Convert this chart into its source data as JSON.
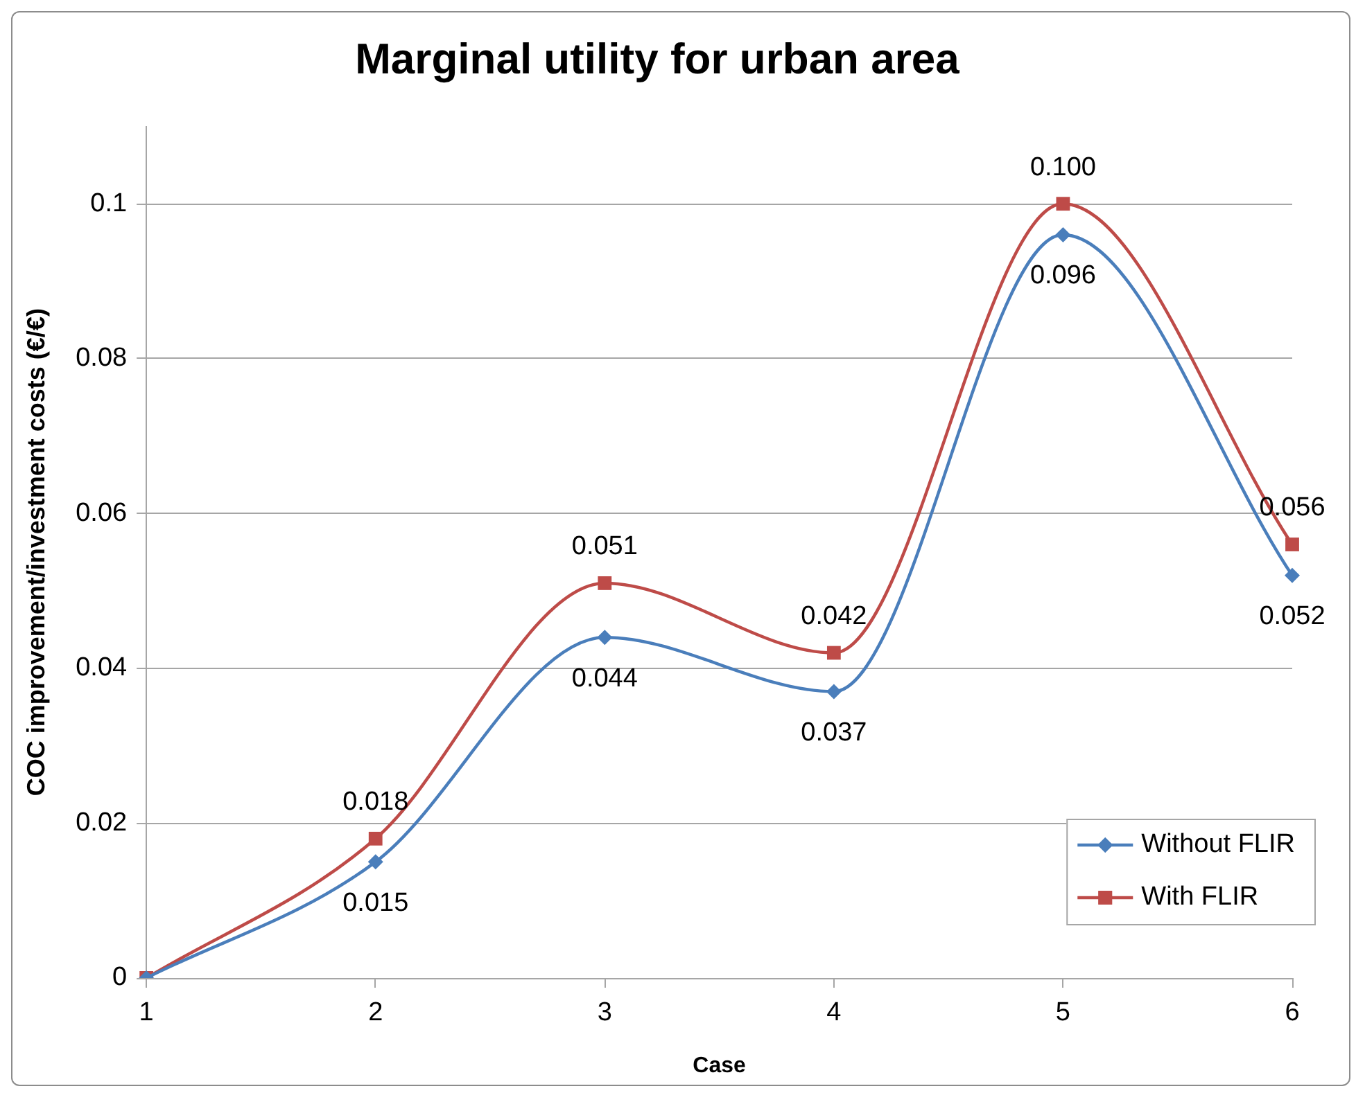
{
  "chart_data": {
    "type": "line",
    "title": "Marginal utility for urban area",
    "xlabel": "Case",
    "ylabel": "COC improvement/investment costs (€/€)",
    "categories": [
      "1",
      "2",
      "3",
      "4",
      "5",
      "6"
    ],
    "series": [
      {
        "name": "Without FLIR",
        "color": "#4a7ebb",
        "marker": "diamond",
        "values": [
          0,
          0.015,
          0.044,
          0.037,
          0.096,
          0.052
        ],
        "value_labels": [
          null,
          "0.015",
          "0.044",
          "0.037",
          "0.096",
          "0.052"
        ]
      },
      {
        "name": "With FLIR",
        "color": "#be4b48",
        "marker": "square",
        "values": [
          0,
          0.018,
          0.051,
          0.042,
          0.1,
          0.056
        ],
        "value_labels": [
          null,
          "0.018",
          "0.051",
          "0.042",
          "0.100",
          "0.056"
        ]
      }
    ],
    "ylim": [
      0,
      0.11
    ],
    "yticks": [
      0,
      0.02,
      0.04,
      0.06,
      0.08,
      0.1
    ],
    "grid": "y",
    "legend": "bottom right"
  }
}
